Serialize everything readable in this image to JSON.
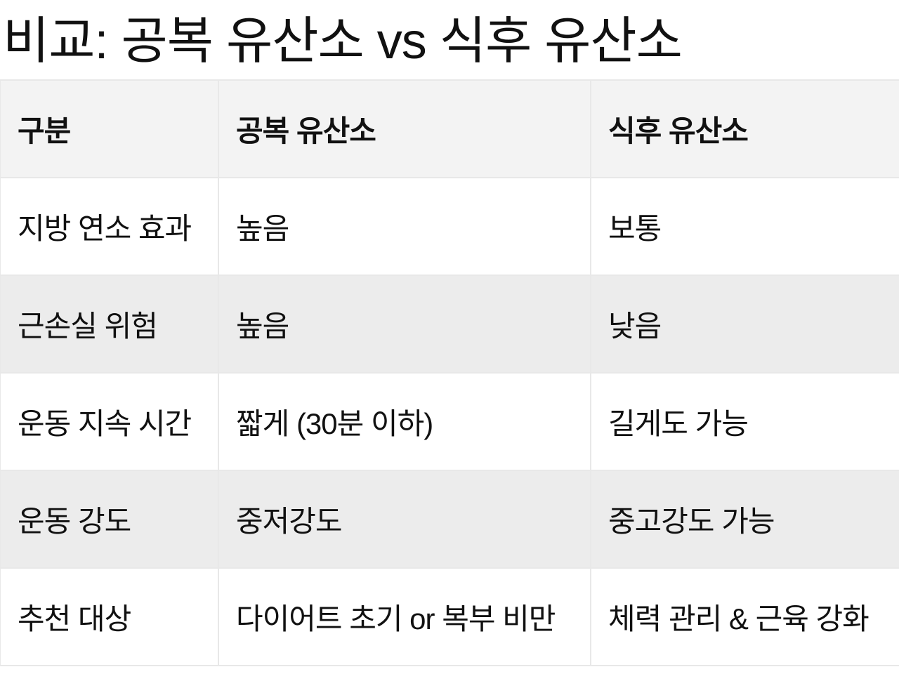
{
  "title": "비교: 공복 유산소 vs 식후 유산소",
  "table": {
    "headers": [
      "구분",
      "공복 유산소",
      "식후 유산소"
    ],
    "rows": [
      [
        "지방 연소 효과",
        "높음",
        "보통"
      ],
      [
        "근손실 위험",
        "높음",
        "낮음"
      ],
      [
        "운동 지속 시간",
        "짧게 (30분 이하)",
        "길게도 가능"
      ],
      [
        "운동 강도",
        "중저강도",
        "중고강도 가능"
      ],
      [
        "추천 대상",
        "다이어트 초기 or 복부 비만",
        "체력 관리 & 근육 강화"
      ]
    ]
  },
  "colors": {
    "header_bg": "#f3f3f3",
    "alt_row_bg": "#ececec",
    "border": "#e8e8e8"
  }
}
